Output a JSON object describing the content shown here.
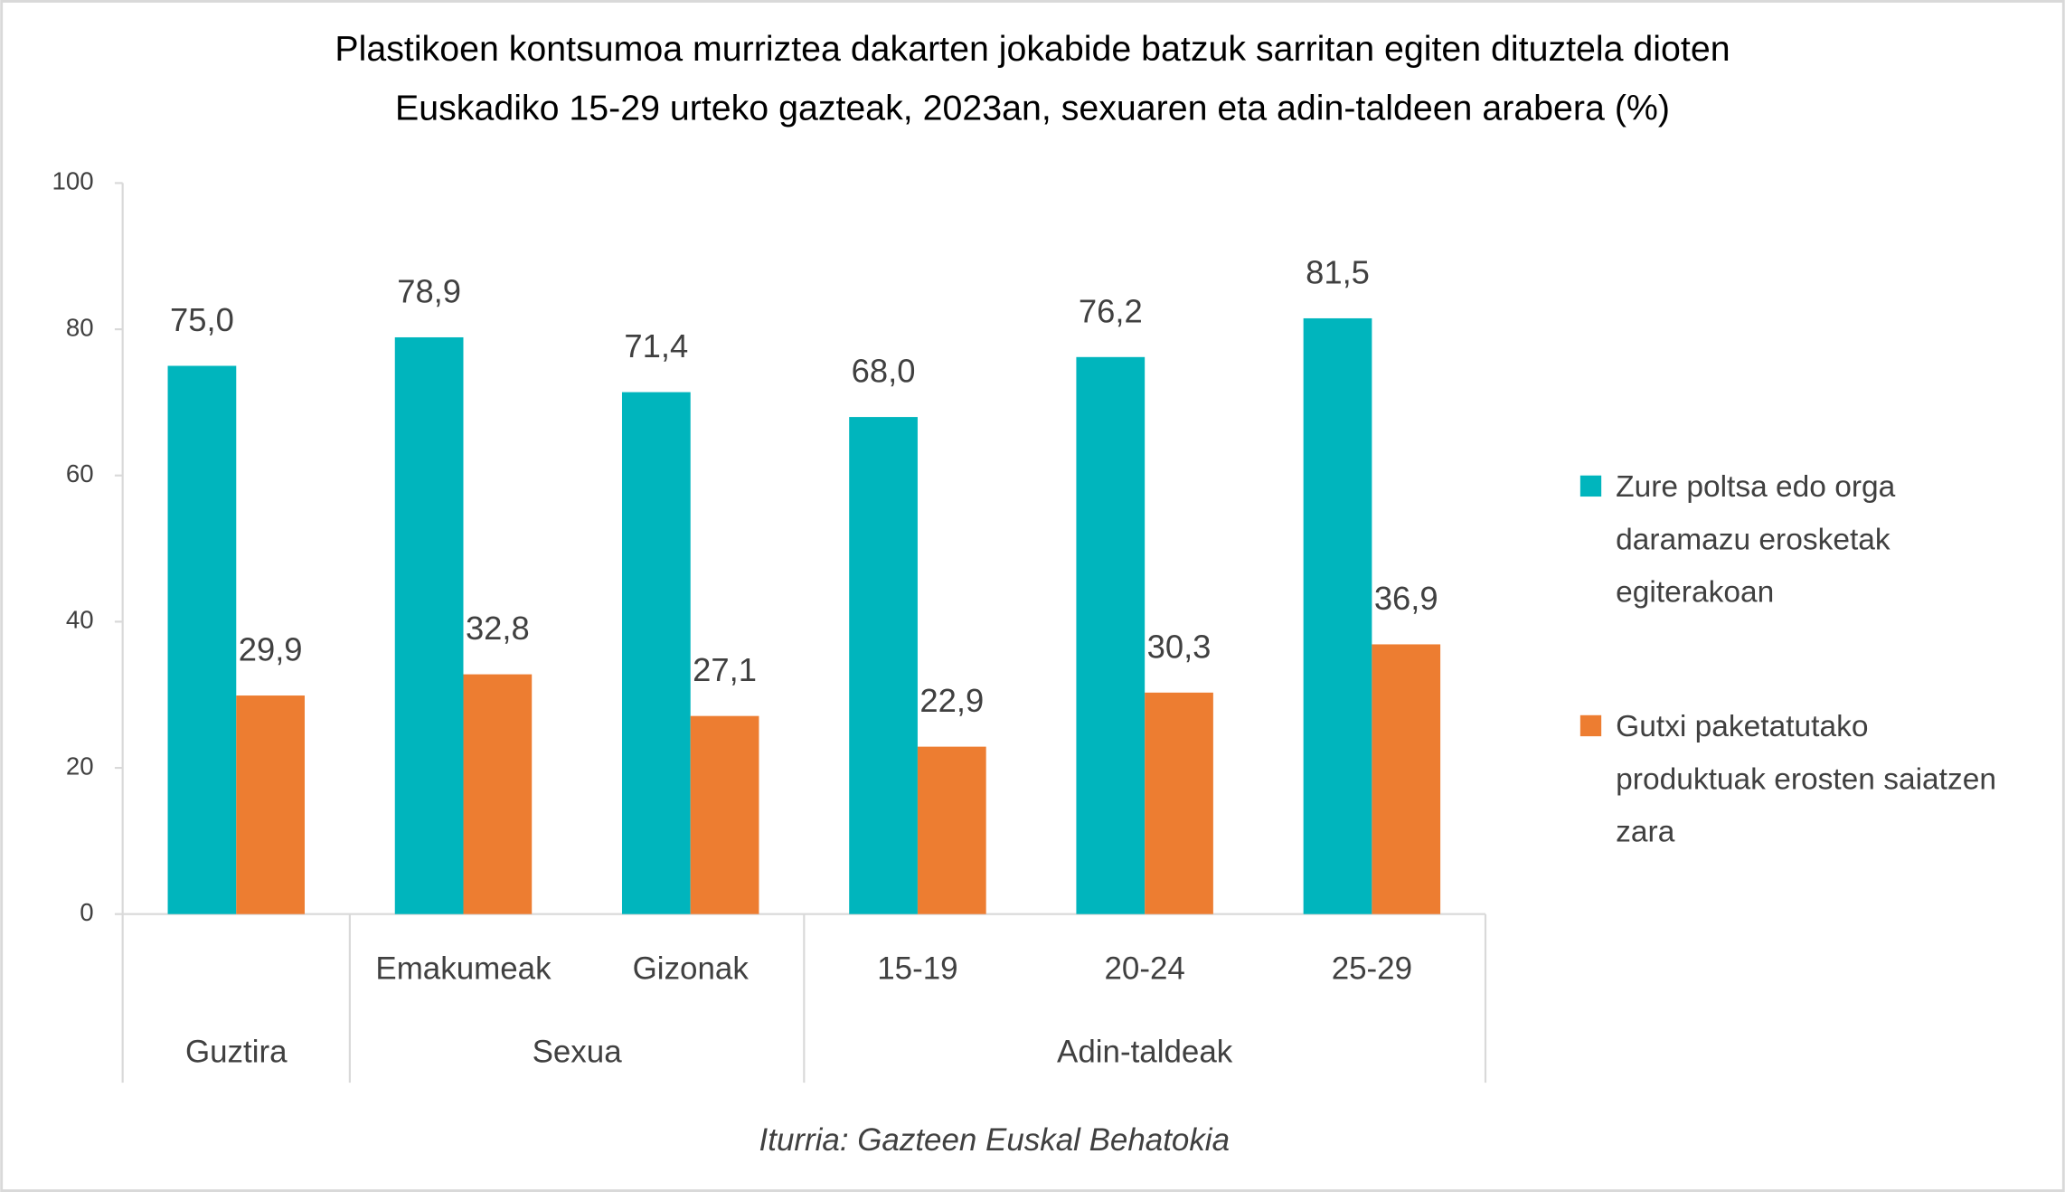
{
  "chart_data": {
    "type": "bar",
    "title": "Plastikoen kontsumoa murriztea dakarten jokabide batzuk sarritan egiten dituztela dioten Euskadiko 15-29 urteko gazteak, 2023an, sexuaren eta adin-taldeen arabera  (%)",
    "categories": [
      null,
      "Emakumeak",
      "Gizonak",
      "15-19",
      "20-24",
      "25-29"
    ],
    "category_groups": [
      {
        "label": "Guztira",
        "count": 1
      },
      {
        "label": "Sexua",
        "count": 2
      },
      {
        "label": "Adin-taldeak",
        "count": 3
      }
    ],
    "series": [
      {
        "name": "Zure poltsa edo orga daramazu erosketak egiterakoan",
        "color": "#00b5bd",
        "values": [
          75.0,
          78.9,
          71.4,
          68.0,
          76.2,
          81.5
        ],
        "value_labels": [
          "75,0",
          "78,9",
          "71,4",
          "68,0",
          "76,2",
          "81,5"
        ]
      },
      {
        "name": "Gutxi paketatutako produktuak erosten saiatzen zara",
        "color": "#ed7d31",
        "values": [
          29.9,
          32.8,
          27.1,
          22.9,
          30.3,
          36.9
        ],
        "value_labels": [
          "29,9",
          "32,8",
          "27,1",
          "22,9",
          "30,3",
          "36,9"
        ]
      }
    ],
    "ylim": [
      0,
      100
    ],
    "yticks": [
      0,
      20,
      40,
      60,
      80,
      100
    ],
    "grid": false,
    "legend": "right",
    "source": "Iturria: Gazteen Euskal Behatokia"
  }
}
